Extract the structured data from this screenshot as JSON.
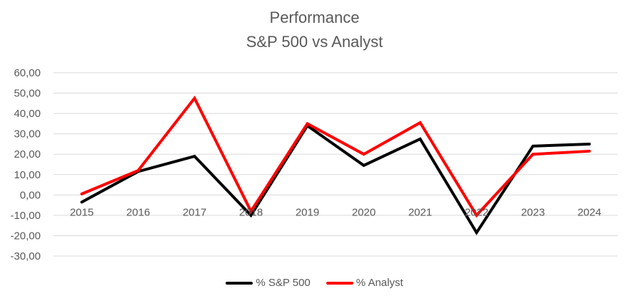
{
  "chart_data": {
    "type": "line",
    "title": "Performance",
    "subtitle": "S&P 500 vs Analyst",
    "xlabel": "",
    "ylabel": "",
    "categories": [
      "2015",
      "2016",
      "2017",
      "2018",
      "2019",
      "2020",
      "2021",
      "2022",
      "2023",
      "2024"
    ],
    "ylim": [
      -30,
      60
    ],
    "yticks": [
      60,
      50,
      40,
      30,
      20,
      10,
      0,
      -10,
      -20,
      -30
    ],
    "ytick_labels": [
      "60,00",
      "50,00",
      "40,00",
      "30,00",
      "20,00",
      "10,00",
      "0,00",
      "-10,00",
      "-20,00",
      "-30,00"
    ],
    "grid": true,
    "legend_position": "bottom",
    "series": [
      {
        "name": "% S&P 500",
        "color": "#000000",
        "values": [
          -3.5,
          11.5,
          19.0,
          -10.0,
          34.0,
          14.5,
          27.5,
          -18.5,
          24.0,
          25.0
        ]
      },
      {
        "name": "% Analyst",
        "color": "#ff0000",
        "values": [
          0.5,
          12.0,
          47.5,
          -8.0,
          35.0,
          20.0,
          35.5,
          -10.0,
          20.0,
          21.5
        ]
      }
    ]
  }
}
